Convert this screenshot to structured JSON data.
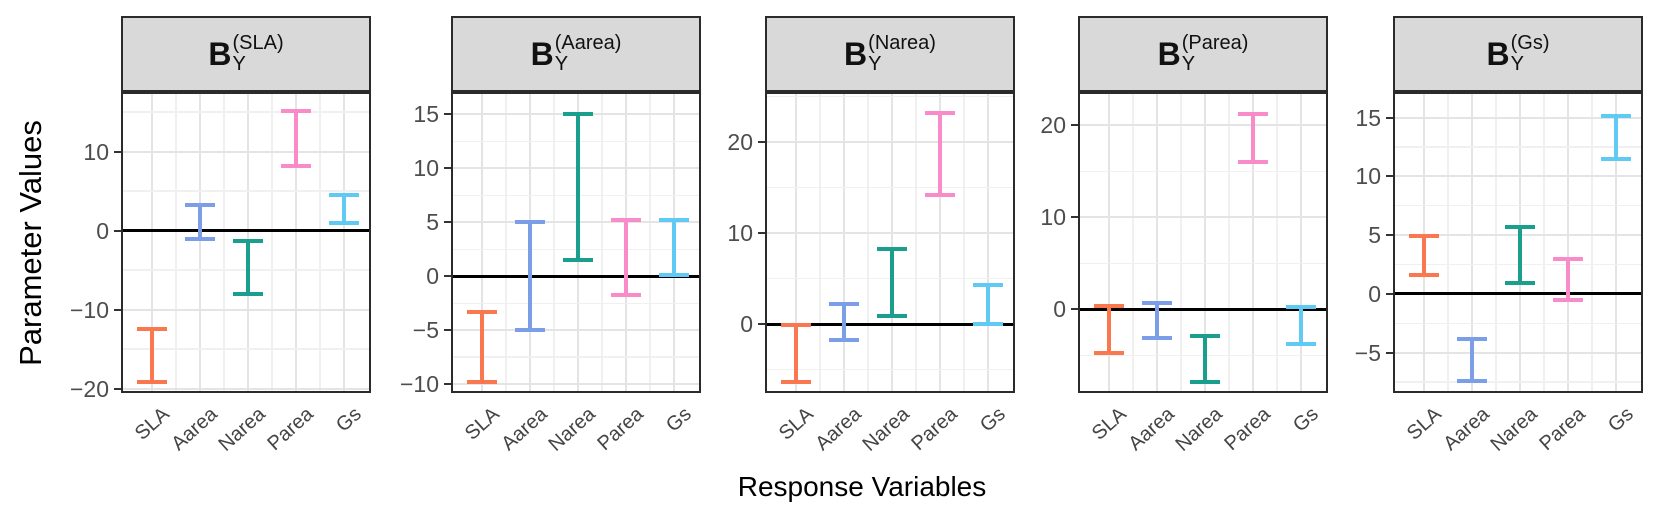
{
  "axes": {
    "y_title": "Parameter Values",
    "x_title": "Response Variables"
  },
  "chart_data": {
    "type": "errorbar",
    "description": "Faceted interval plot of parameter values (credible intervals) per response variable",
    "categories": [
      "SLA",
      "Aarea",
      "Narea",
      "Parea",
      "Gs"
    ],
    "colors": {
      "SLA": "#FA7850",
      "Aarea": "#7C9DE8",
      "Narea": "#1A9E8E",
      "Parea": "#F98BC8",
      "Gs": "#5FCBF5"
    },
    "grid": true,
    "strip_bg": "#D9D9D9",
    "facets": [
      {
        "label_base": "B",
        "label_sub": "Y",
        "label_sup": "(SLA)",
        "ylim": [
          -20.8,
          17.3
        ],
        "yticks": [
          -20,
          -10,
          0,
          10
        ],
        "yticks_minor": [
          -15,
          -5,
          5,
          15
        ],
        "bars": [
          {
            "category": "SLA",
            "low": -19.1,
            "high": -12.5
          },
          {
            "category": "Aarea",
            "low": -1.1,
            "high": 3.2
          },
          {
            "category": "Narea",
            "low": -8.0,
            "high": -1.3
          },
          {
            "category": "Parea",
            "low": 8.2,
            "high": 15.1
          },
          {
            "category": "Gs",
            "low": 1.0,
            "high": 4.5
          }
        ]
      },
      {
        "label_base": "B",
        "label_sub": "Y",
        "label_sup": "(Aarea)",
        "ylim": [
          -11.0,
          16.9
        ],
        "yticks": [
          -10,
          -5,
          0,
          5,
          10,
          15
        ],
        "yticks_minor": [
          -7.5,
          -2.5,
          2.5,
          7.5,
          12.5
        ],
        "bars": [
          {
            "category": "SLA",
            "low": -9.8,
            "high": -3.3
          },
          {
            "category": "Aarea",
            "low": -5.0,
            "high": 5.0
          },
          {
            "category": "Narea",
            "low": 1.5,
            "high": 15.0
          },
          {
            "category": "Parea",
            "low": -1.7,
            "high": 5.2
          },
          {
            "category": "Gs",
            "low": 0.1,
            "high": 5.2
          }
        ]
      },
      {
        "label_base": "B",
        "label_sub": "Y",
        "label_sup": "(Narea)",
        "ylim": [
          -7.8,
          25.3
        ],
        "yticks": [
          0,
          10,
          20
        ],
        "yticks_minor": [
          -5,
          5,
          15,
          25
        ],
        "bars": [
          {
            "category": "SLA",
            "low": -6.4,
            "high": -0.1
          },
          {
            "category": "Aarea",
            "low": -1.8,
            "high": 2.2
          },
          {
            "category": "Narea",
            "low": 0.9,
            "high": 8.3
          },
          {
            "category": "Parea",
            "low": 14.2,
            "high": 23.2
          },
          {
            "category": "Gs",
            "low": 0.0,
            "high": 4.3
          }
        ]
      },
      {
        "label_base": "B",
        "label_sub": "Y",
        "label_sup": "(Parea)",
        "ylim": [
          -9.3,
          23.4
        ],
        "yticks": [
          0,
          10,
          20
        ],
        "yticks_minor": [
          -5,
          5,
          15
        ],
        "bars": [
          {
            "category": "SLA",
            "low": -4.7,
            "high": 0.4
          },
          {
            "category": "Aarea",
            "low": -3.1,
            "high": 0.7
          },
          {
            "category": "Narea",
            "low": -7.9,
            "high": -2.9
          },
          {
            "category": "Parea",
            "low": 16.0,
            "high": 21.2
          },
          {
            "category": "Gs",
            "low": -3.8,
            "high": 0.3
          }
        ]
      },
      {
        "label_base": "B",
        "label_sub": "Y",
        "label_sup": "(Gs)",
        "ylim": [
          -8.6,
          17.0
        ],
        "yticks": [
          -5,
          0,
          5,
          10,
          15
        ],
        "yticks_minor": [
          -7.5,
          -2.5,
          2.5,
          7.5,
          12.5
        ],
        "bars": [
          {
            "category": "SLA",
            "low": 1.6,
            "high": 4.9
          },
          {
            "category": "Aarea",
            "low": -7.4,
            "high": -3.8
          },
          {
            "category": "Narea",
            "low": 0.9,
            "high": 5.7
          },
          {
            "category": "Parea",
            "low": -0.5,
            "high": 3.0
          },
          {
            "category": "Gs",
            "low": 11.5,
            "high": 15.1
          }
        ]
      }
    ]
  }
}
